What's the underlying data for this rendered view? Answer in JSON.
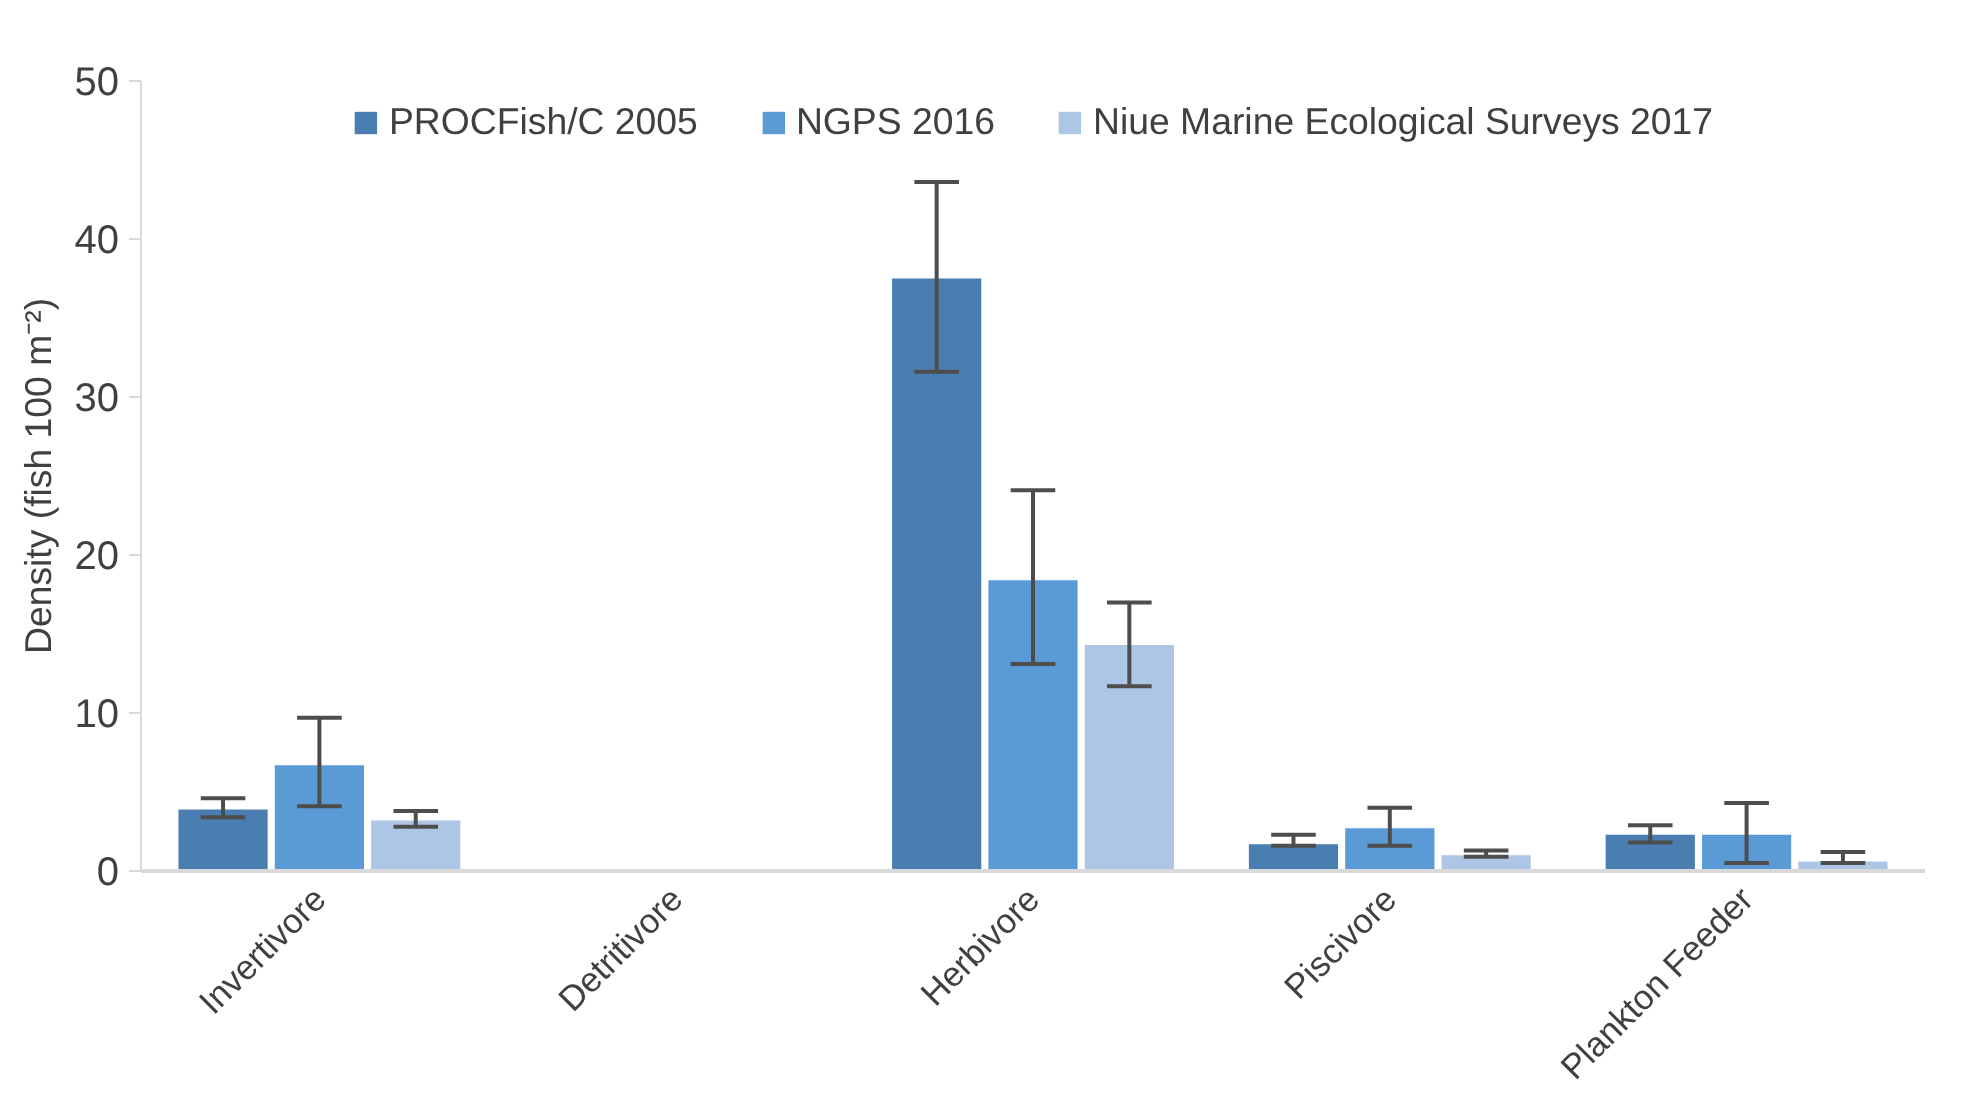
{
  "chart_data": {
    "type": "bar",
    "ylabel": "Density (fish 100 m⁻²)",
    "categories": [
      "Invertivore",
      "Detritivore",
      "Herbivore",
      "Piscivore",
      "Plankton Feeder"
    ],
    "series": [
      {
        "name": "PROCFish/C 2005",
        "color": "#4a7eb0",
        "values": [
          3.9,
          0,
          37.5,
          1.7,
          2.3
        ],
        "errors": [
          [
            3.4,
            4.6
          ],
          null,
          [
            31.6,
            43.6
          ],
          [
            1.6,
            2.3
          ],
          [
            1.8,
            2.9
          ]
        ]
      },
      {
        "name": "NGPS 2016",
        "color": "#5b9bd5",
        "values": [
          6.7,
          0,
          18.4,
          2.7,
          2.3
        ],
        "errors": [
          [
            4.1,
            9.7
          ],
          null,
          [
            13.1,
            24.1
          ],
          [
            1.6,
            4.0
          ],
          [
            0.5,
            4.3
          ]
        ]
      },
      {
        "name": "Niue Marine Ecological Surveys 2017",
        "color": "#adc6e5",
        "values": [
          3.2,
          0,
          14.3,
          1.0,
          0.6
        ],
        "errors": [
          [
            2.8,
            3.8
          ],
          null,
          [
            11.7,
            17.0
          ],
          [
            0.9,
            1.3
          ],
          [
            0.5,
            1.2
          ]
        ]
      }
    ],
    "ylim": [
      0,
      50
    ],
    "yticks": [
      0,
      10,
      20,
      30,
      40,
      50
    ],
    "grid": false,
    "legend": "top"
  }
}
